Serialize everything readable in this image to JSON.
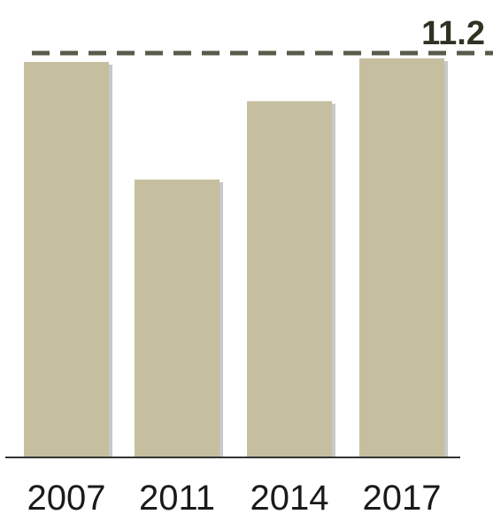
{
  "chart_data": {
    "type": "bar",
    "categories": [
      "2007",
      "2011",
      "2014",
      "2017"
    ],
    "values": [
      11.1,
      7.8,
      10.0,
      11.2
    ],
    "title": "",
    "xlabel": "",
    "ylabel": "",
    "ylim": [
      0,
      11.2
    ],
    "grid": false,
    "reference_line": {
      "value": 11.2,
      "label": "11.2",
      "style": "dashed"
    },
    "colors": {
      "bar": "#c6bf9f",
      "bar_shadow": "#9a9a9a",
      "baseline": "#333333",
      "reference_line": "#5a5a4a",
      "reference_label": "#2f3324"
    }
  }
}
